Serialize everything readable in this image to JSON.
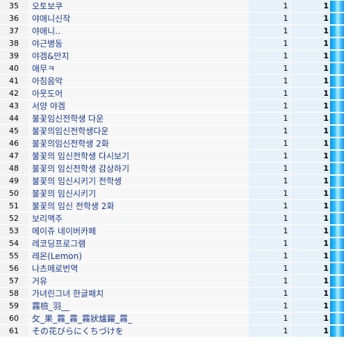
{
  "rows": [
    {
      "rank": "35",
      "keyword": "오토보쿠",
      "count1": "1",
      "count2": "1"
    },
    {
      "rank": "36",
      "keyword": "야애니신작",
      "count1": "1",
      "count2": "1"
    },
    {
      "rank": "37",
      "keyword": "야애니..",
      "count1": "1",
      "count2": "1"
    },
    {
      "rank": "38",
      "keyword": "야근병동",
      "count1": "1",
      "count2": "1"
    },
    {
      "rank": "39",
      "keyword": "야겜&만지",
      "count1": "1",
      "count2": "1"
    },
    {
      "rank": "40",
      "keyword": "애무ㅋ",
      "count1": "1",
      "count2": "1"
    },
    {
      "rank": "41",
      "keyword": "아침음악",
      "count1": "1",
      "count2": "1"
    },
    {
      "rank": "42",
      "keyword": "아웃도어",
      "count1": "1",
      "count2": "1"
    },
    {
      "rank": "43",
      "keyword": "서양 야겜",
      "count1": "1",
      "count2": "1"
    },
    {
      "rank": "44",
      "keyword": "불꽃임신전학생 다운",
      "count1": "1",
      "count2": "1"
    },
    {
      "rank": "45",
      "keyword": "불꽃의임신전학생다운",
      "count1": "1",
      "count2": "1"
    },
    {
      "rank": "46",
      "keyword": "불꽃의임신전학생 2화",
      "count1": "1",
      "count2": "1"
    },
    {
      "rank": "47",
      "keyword": "불꽃의 임신전학생 다시보기",
      "count1": "1",
      "count2": "1"
    },
    {
      "rank": "48",
      "keyword": "불꽃의 임신전학생 감상하기",
      "count1": "1",
      "count2": "1"
    },
    {
      "rank": "49",
      "keyword": "불꽃의 임신시키기 전학생",
      "count1": "1",
      "count2": "1"
    },
    {
      "rank": "50",
      "keyword": "불꽃의 임신시키기",
      "count1": "1",
      "count2": "1"
    },
    {
      "rank": "51",
      "keyword": "불꽃의 임신 전학생 2화",
      "count1": "1",
      "count2": "1"
    },
    {
      "rank": "52",
      "keyword": "보리맥주",
      "count1": "1",
      "count2": "1"
    },
    {
      "rank": "53",
      "keyword": "메이쥬 네이버카페",
      "count1": "1",
      "count2": "1"
    },
    {
      "rank": "54",
      "keyword": "레코딩프로그램",
      "count1": "1",
      "count2": "1"
    },
    {
      "rank": "55",
      "keyword": "레몬(Lemon)",
      "count1": "1",
      "count2": "1"
    },
    {
      "rank": "56",
      "keyword": "나츠메로번역",
      "count1": "1",
      "count2": "1"
    },
    {
      "rank": "57",
      "keyword": "거유",
      "count1": "1",
      "count2": "1"
    },
    {
      "rank": "58",
      "keyword": "가녀린그녀 한글패치",
      "count1": "1",
      "count2": "1"
    },
    {
      "rank": "59",
      "keyword": "霧檢_羽__",
      "count1": "1",
      "count2": "1"
    },
    {
      "rank": "60",
      "keyword": "攵_果_霧_霧_霧狀爐糶_霧_",
      "count1": "1",
      "count2": "1"
    },
    {
      "rank": "61",
      "keyword": "その花びらにくちづけを",
      "count1": "1",
      "count2": "1"
    }
  ]
}
